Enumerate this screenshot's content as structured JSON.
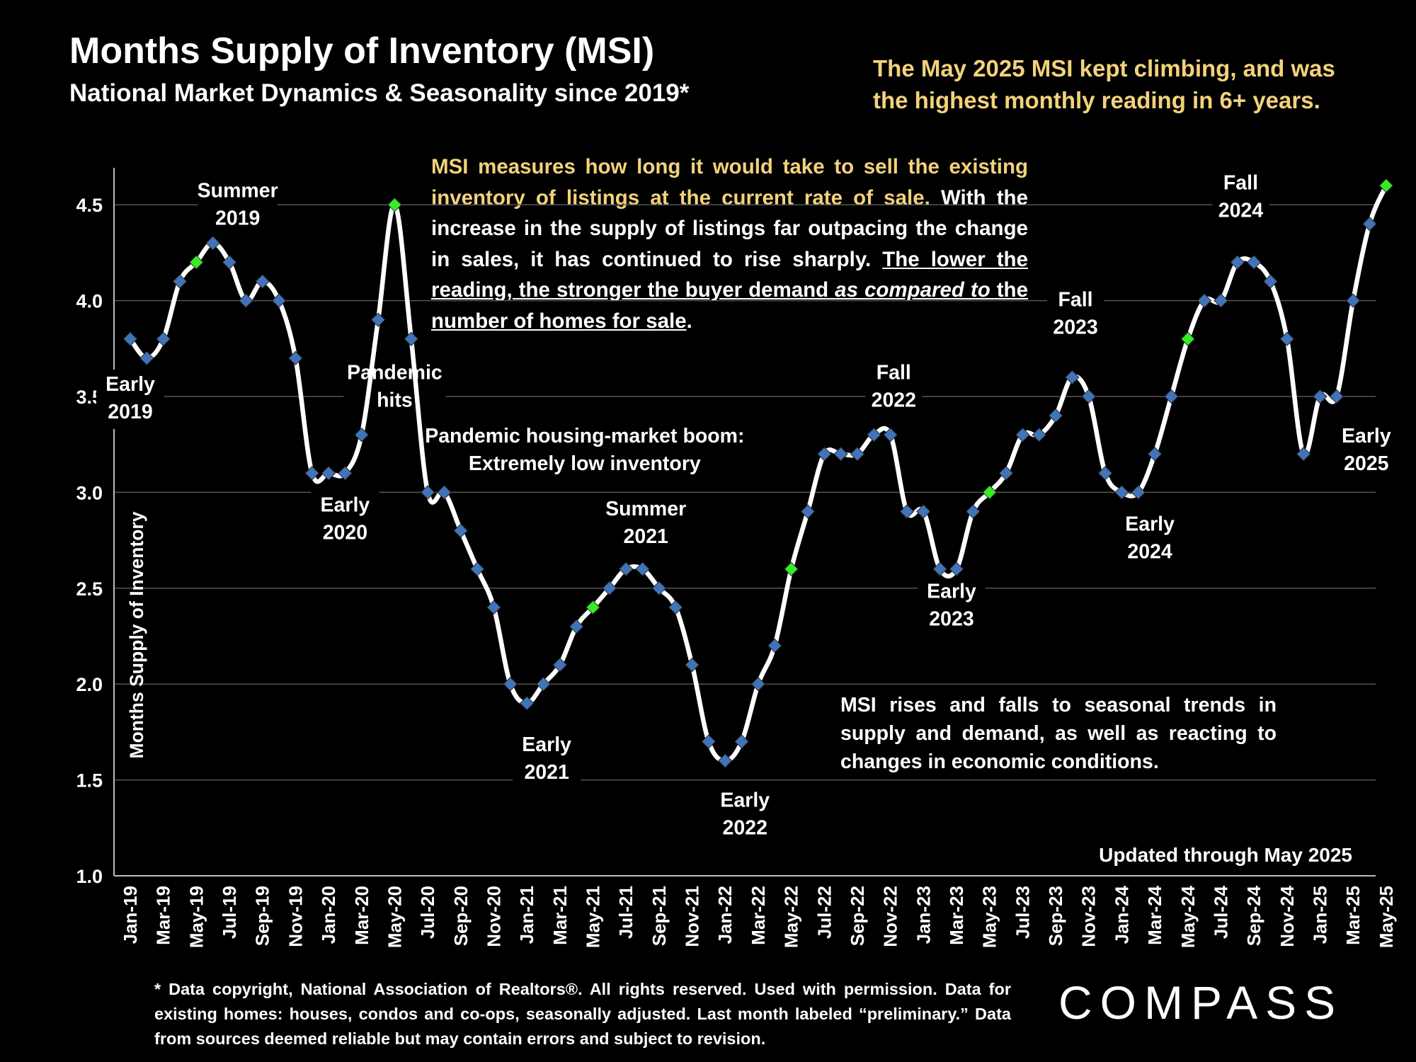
{
  "header": {
    "title": "Months Supply of Inventory (MSI)",
    "subtitle": "National Market Dynamics & Seasonality since 2019*",
    "headline": "The May 2025 MSI kept climbing, and was the highest monthly reading in 6+ years."
  },
  "explanation": {
    "highlight": "MSI measures how long it would take to sell the existing inventory of listings at the current rate of sale.",
    "part1": " With the increase in the supply of listings far outpacing the change in sales, it has continued to rise sharply. ",
    "underlined1": "The lower the reading, the stronger the buyer demand ",
    "underlined_italic": "as compared to",
    "underlined2": " the number of homes for sale",
    "end": "."
  },
  "seasonal_note": "MSI rises and falls to seasonal trends in supply and demand, as well as reacting to changes in economic conditions.",
  "footnote": "* Data copyright, National Association of Realtors®. All rights reserved. Used with permission. Data for existing homes: houses, condos and co-ops, seasonally adjusted. Last month labeled “preliminary.” Data from sources deemed reliable but may contain errors and subject to revision.",
  "logo_text": "COMPASS",
  "chart_data": {
    "type": "line",
    "ylabel": "Months Supply of Inventory",
    "ylim": [
      1.0,
      4.5
    ],
    "yticks": [
      "1.0",
      "1.5",
      "2.0",
      "2.5",
      "3.0",
      "3.5",
      "4.0",
      "4.5"
    ],
    "tick_labels": [
      "Jan-19",
      "Mar-19",
      "May-19",
      "Jul-19",
      "Sep-19",
      "Nov-19",
      "Jan-20",
      "Mar-20",
      "May-20",
      "Jul-20",
      "Sep-20",
      "Nov-20",
      "Jan-21",
      "Mar-21",
      "May-21",
      "Jul-21",
      "Sep-21",
      "Nov-21",
      "Jan-22",
      "Mar-22",
      "May-22",
      "Jul-22",
      "Sep-22",
      "Nov-22",
      "Jan-23",
      "Mar-23",
      "May-23",
      "Jul-23",
      "Sep-23",
      "Nov-23",
      "Jan-24",
      "Mar-24",
      "May-24",
      "Jul-24",
      "Sep-24",
      "Nov-24",
      "Jan-25",
      "Mar-25",
      "May-25"
    ],
    "values": [
      3.8,
      3.7,
      3.8,
      4.1,
      4.2,
      4.3,
      4.2,
      4.0,
      4.1,
      4.0,
      3.7,
      3.1,
      3.1,
      3.1,
      3.3,
      3.9,
      4.5,
      3.8,
      3.0,
      3.0,
      2.8,
      2.6,
      2.4,
      2.0,
      1.9,
      2.0,
      2.1,
      2.3,
      2.4,
      2.5,
      2.6,
      2.6,
      2.5,
      2.4,
      2.1,
      1.7,
      1.6,
      1.7,
      2.0,
      2.2,
      2.6,
      2.9,
      3.2,
      3.2,
      3.2,
      3.3,
      3.3,
      2.9,
      2.9,
      2.6,
      2.6,
      2.9,
      3.0,
      3.1,
      3.3,
      3.3,
      3.4,
      3.6,
      3.5,
      3.1,
      3.0,
      3.0,
      3.2,
      3.5,
      3.8,
      4.0,
      4.0,
      4.2,
      4.2,
      4.1,
      3.8,
      3.2,
      3.5,
      3.5,
      4.0,
      4.4,
      4.6
    ],
    "highlighted_indices": [
      4,
      16,
      28,
      40,
      52,
      64,
      76
    ],
    "colors": {
      "marker": "#3f74b8",
      "highlight": "#33ee22",
      "line": "#ffffff",
      "grid": "#555555",
      "headline": "#f3d27a"
    },
    "annotations": [
      {
        "text": [
          "Early",
          "2019"
        ],
        "index": 0,
        "value": 3.53
      },
      {
        "text": [
          "Summer",
          "2019"
        ],
        "index": 6.5,
        "value": 4.54
      },
      {
        "text": [
          "Early",
          "2020"
        ],
        "index": 13,
        "value": 2.9
      },
      {
        "text": [
          "Pandemic",
          "hits"
        ],
        "index": 16,
        "value": 3.59
      },
      {
        "text": [
          "Early",
          "2021"
        ],
        "index": 25.2,
        "value": 1.65
      },
      {
        "text": [
          "Summer",
          "2021"
        ],
        "index": 31.2,
        "value": 2.88
      },
      {
        "text": [
          "Early",
          "2022"
        ],
        "index": 37.2,
        "value": 1.36
      },
      {
        "text": [
          "Fall",
          "2022"
        ],
        "index": 46.2,
        "value": 3.59
      },
      {
        "text": [
          "Early",
          "2023"
        ],
        "index": 49.7,
        "value": 2.45
      },
      {
        "text": [
          "Fall",
          "2023"
        ],
        "index": 57.2,
        "value": 3.97
      },
      {
        "text": [
          "Early",
          "2024"
        ],
        "index": 61.7,
        "value": 2.8
      },
      {
        "text": [
          "Fall",
          "2024"
        ],
        "index": 67.2,
        "value": 4.58
      },
      {
        "text": [
          "Early",
          "2025"
        ],
        "index": 74.8,
        "value": 3.26
      },
      {
        "text": [
          "Pandemic housing-market boom:",
          "Extremely low inventory"
        ],
        "index": 27.5,
        "value": 3.26
      }
    ],
    "updated_note": "Updated through May 2025"
  }
}
